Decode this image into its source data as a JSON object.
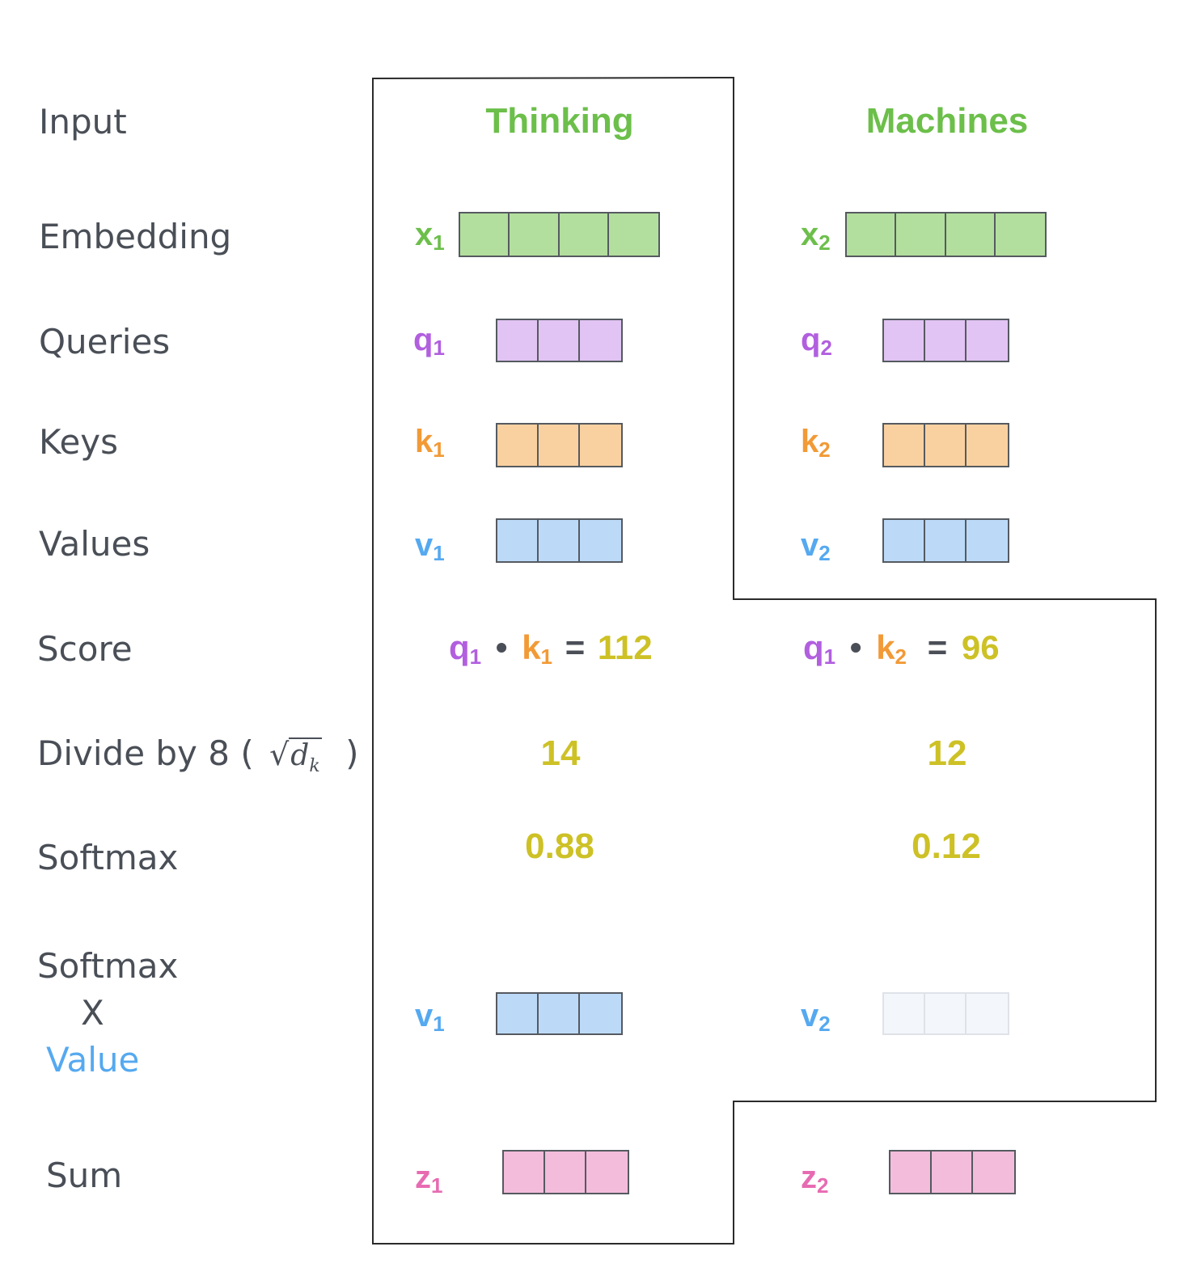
{
  "colors": {
    "label": "#4a4f57",
    "input_word": "#6cbf4a",
    "embedding_fill": "#b3df9e",
    "query": "#b15fdf",
    "query_fill": "#e1c4f3",
    "key": "#f29a36",
    "key_fill": "#f9d1a1",
    "value": "#55a9f0",
    "value_fill": "#bcdaf8",
    "value_faded_fill": "#f3f7fc",
    "output": "#e76bb2",
    "output_fill": "#f3bcdb",
    "number": "#cdc126",
    "outline": "#2b2b2b"
  },
  "row_labels": {
    "input": "Input",
    "embedding": "Embedding",
    "queries": "Queries",
    "keys": "Keys",
    "values": "Values",
    "score": "Score",
    "divide": "Divide by 8 (",
    "divide_close": ")",
    "sqrt_symbol": "√",
    "sqrt_var": "d",
    "sqrt_sub": "k",
    "softmax": "Softmax",
    "softmax_value_line1": "Softmax",
    "softmax_value_line2": "X",
    "softmax_value_line3": "Value",
    "sum": "Sum"
  },
  "words": [
    {
      "input": "Thinking",
      "x_label": "x",
      "x_sub": "1",
      "q_label": "q",
      "q_sub": "1",
      "k_label": "k",
      "k_sub": "1",
      "v_label": "v",
      "v_sub": "1",
      "score": {
        "q": "q",
        "q_sub": "1",
        "dot": "•",
        "k": "k",
        "k_sub": "1",
        "eq": "=",
        "value": "112"
      },
      "divided": "14",
      "softmax": "0.88",
      "wv_label": "v",
      "wv_sub": "1",
      "z_label": "z",
      "z_sub": "1"
    },
    {
      "input": "Machines",
      "x_label": "x",
      "x_sub": "2",
      "q_label": "q",
      "q_sub": "2",
      "k_label": "k",
      "k_sub": "2",
      "v_label": "v",
      "v_sub": "2",
      "score": {
        "q": "q",
        "q_sub": "1",
        "dot": "•",
        "k": "k",
        "k_sub": "2",
        "eq": "=",
        "value": "96"
      },
      "divided": "12",
      "softmax": "0.12",
      "wv_label": "v",
      "wv_sub": "2",
      "z_label": "z",
      "z_sub": "2"
    }
  ]
}
